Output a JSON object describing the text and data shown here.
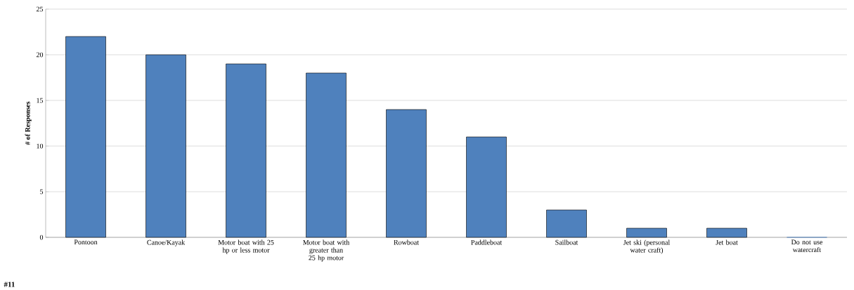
{
  "chart_data": {
    "type": "bar",
    "ylabel": "# of Responses",
    "categories": [
      "Pontoon",
      "Canoe/Kayak",
      "Motor boat with 25 hp or less motor",
      "Motor boat with greater than 25 hp motor",
      "Rowboat",
      "Paddleboat",
      "Sailboat",
      "Jet ski (personal water craft)",
      "Jet boat",
      "Do not use watercraft"
    ],
    "values": [
      22,
      20,
      19,
      18,
      14,
      11,
      3,
      1,
      1,
      0
    ],
    "color": "#4f81bd",
    "ylim": [
      0,
      25
    ],
    "yticks": [
      0,
      5,
      10,
      15,
      20,
      25
    ],
    "grid": "y",
    "annotations": [
      "#11"
    ]
  }
}
